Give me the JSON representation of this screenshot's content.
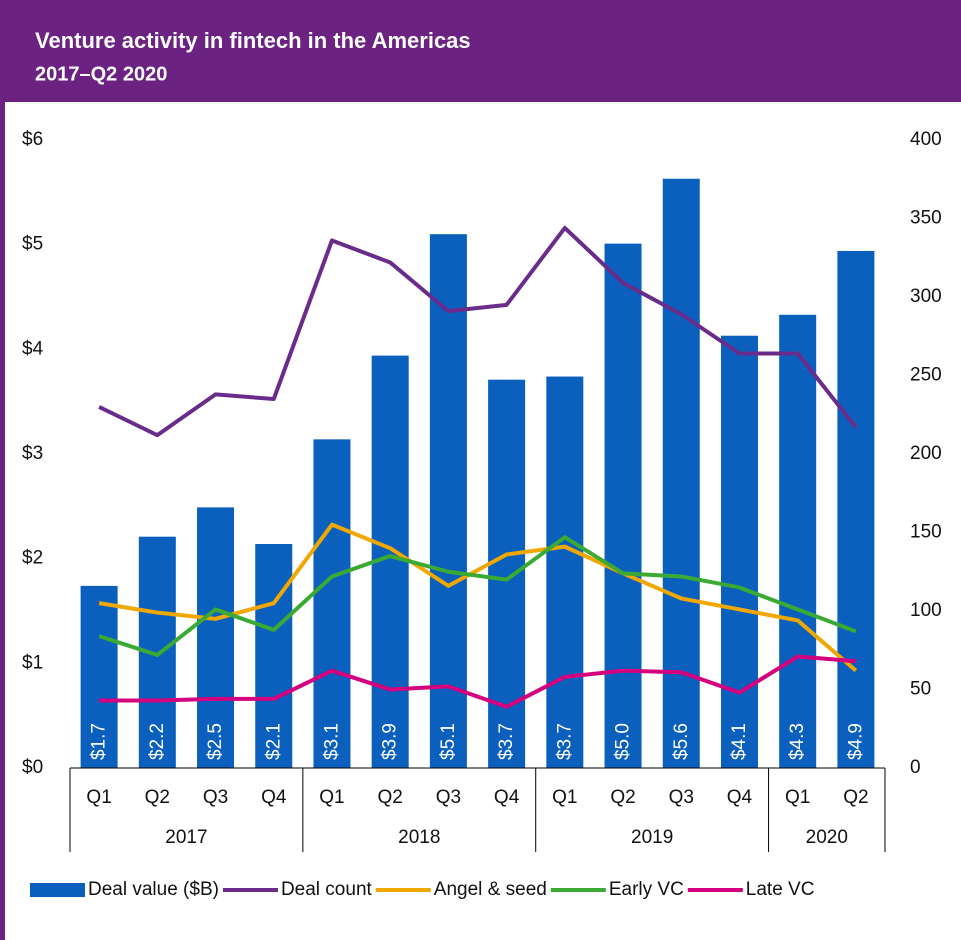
{
  "chart_data": {
    "type": "bar-line",
    "title": "Venture activity in fintech in the Americas",
    "subtitle": "2017–Q2 2020",
    "groups": [
      {
        "label": "2017",
        "quarters": [
          "Q1",
          "Q2",
          "Q3",
          "Q4"
        ]
      },
      {
        "label": "2018",
        "quarters": [
          "Q1",
          "Q2",
          "Q3",
          "Q4"
        ]
      },
      {
        "label": "2019",
        "quarters": [
          "Q1",
          "Q2",
          "Q3",
          "Q4"
        ]
      },
      {
        "label": "2020",
        "quarters": [
          "Q1",
          "Q2"
        ]
      }
    ],
    "series": [
      {
        "name": "Deal value ($B)",
        "type": "bar",
        "axis": "y",
        "color": "#0b5fbd",
        "values": [
          1.74,
          2.21,
          2.49,
          2.14,
          3.14,
          3.94,
          5.1,
          3.71,
          3.74,
          5.01,
          5.63,
          4.13,
          4.33,
          4.94
        ],
        "value_labels": [
          "$1.7",
          "$2.2",
          "$2.5",
          "$2.1",
          "$3.1",
          "$3.9",
          "$5.1",
          "$3.7",
          "$3.7",
          "$5.0",
          "$5.6",
          "$4.1",
          "$4.3",
          "$4.9"
        ]
      },
      {
        "name": "Deal count",
        "type": "line",
        "axis": "y2",
        "color": "#6a2c8a",
        "values": [
          230,
          212,
          238,
          235,
          336,
          322,
          291,
          295,
          344,
          309,
          289,
          264,
          264,
          217
        ]
      },
      {
        "name": "Angel & seed",
        "type": "line",
        "axis": "y2",
        "color": "#f0a800",
        "values": [
          105,
          99,
          95,
          105,
          155,
          140,
          116,
          136,
          141,
          124,
          108,
          101,
          94,
          62
        ]
      },
      {
        "name": "Early VC",
        "type": "line",
        "axis": "y2",
        "color": "#3aaa35",
        "values": [
          84,
          72,
          101,
          88,
          122,
          135,
          125,
          120,
          147,
          124,
          122,
          115,
          101,
          87
        ]
      },
      {
        "name": "Late VC",
        "type": "line",
        "axis": "y2",
        "color": "#d4007e",
        "values": [
          43,
          43,
          44,
          44,
          62,
          50,
          52,
          39,
          58,
          62,
          61,
          48,
          71,
          68
        ]
      }
    ],
    "ylim": [
      0,
      6
    ],
    "yticks": [
      {
        "value": 0,
        "label": "$0"
      },
      {
        "value": 1,
        "label": "$1"
      },
      {
        "value": 2,
        "label": "$2"
      },
      {
        "value": 3,
        "label": "$3"
      },
      {
        "value": 4,
        "label": "$4"
      },
      {
        "value": 5,
        "label": "$5"
      },
      {
        "value": 6,
        "label": "$6"
      }
    ],
    "y2lim": [
      0,
      400
    ],
    "y2ticks": [
      0,
      50,
      100,
      150,
      200,
      250,
      300,
      350,
      400
    ],
    "header_color": "#6c2280"
  }
}
